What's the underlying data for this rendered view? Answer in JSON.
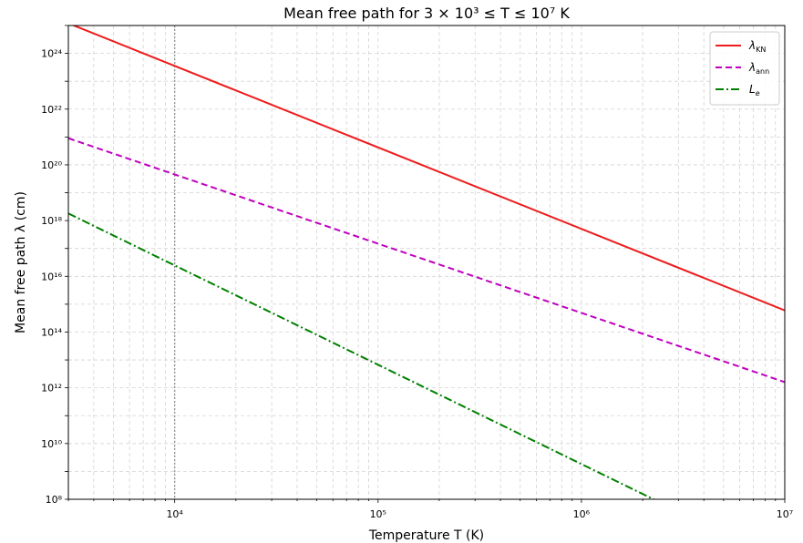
{
  "chart_data": {
    "type": "line",
    "title": "Mean free path for 3 × 10³ ≤ T ≤ 10⁷ K",
    "xlabel": "Temperature T (K)",
    "ylabel": "Mean free path λ (cm)",
    "xscale": "log",
    "yscale": "log",
    "xlim": [
      3000,
      10000000
    ],
    "ylim": [
      100000000.0,
      1e+25
    ],
    "x_ticks": [
      {
        "value": 10000,
        "label": "10⁴"
      },
      {
        "value": 100000,
        "label": "10⁵"
      },
      {
        "value": 1000000,
        "label": "10⁶"
      },
      {
        "value": 10000000,
        "label": "10⁷"
      }
    ],
    "y_ticks": [
      {
        "value": 100000000.0,
        "label": "10⁸"
      },
      {
        "value": 10000000000.0,
        "label": "10¹⁰"
      },
      {
        "value": 1000000000000.0,
        "label": "10¹²"
      },
      {
        "value": 100000000000000.0,
        "label": "10¹⁴"
      },
      {
        "value": 1e+16,
        "label": "10¹⁶"
      },
      {
        "value": 1e+18,
        "label": "10¹⁸"
      },
      {
        "value": 1e+20,
        "label": "10²⁰"
      },
      {
        "value": 1e+22,
        "label": "10²²"
      },
      {
        "value": 1e+24,
        "label": "10²⁴"
      }
    ],
    "grid": true,
    "grid_minor": true,
    "vline": {
      "x": 10000,
      "color": "#999999",
      "style": "dotted"
    },
    "legend_position": "top-right",
    "series": [
      {
        "name": "λKN",
        "name_main": "λ",
        "name_sub": "KN",
        "color": "#ee1c1c",
        "style": "solid",
        "x": [
          3000,
          10000000
        ],
        "y": [
          1.2e+25,
          600000000000000.0
        ]
      },
      {
        "name": "λann",
        "name_main": "λ",
        "name_sub": "ann",
        "color": "#bf00bf",
        "style": "dashed",
        "x": [
          3000,
          10000000
        ],
        "y": [
          9e+20,
          1600000000000.0
        ]
      },
      {
        "name": "Le",
        "name_main": "L",
        "name_sub": "e",
        "color": "#008000",
        "style": "dashdot",
        "x": [
          3000,
          10000000
        ],
        "y": [
          1.8e+18,
          500000.0
        ]
      }
    ]
  }
}
